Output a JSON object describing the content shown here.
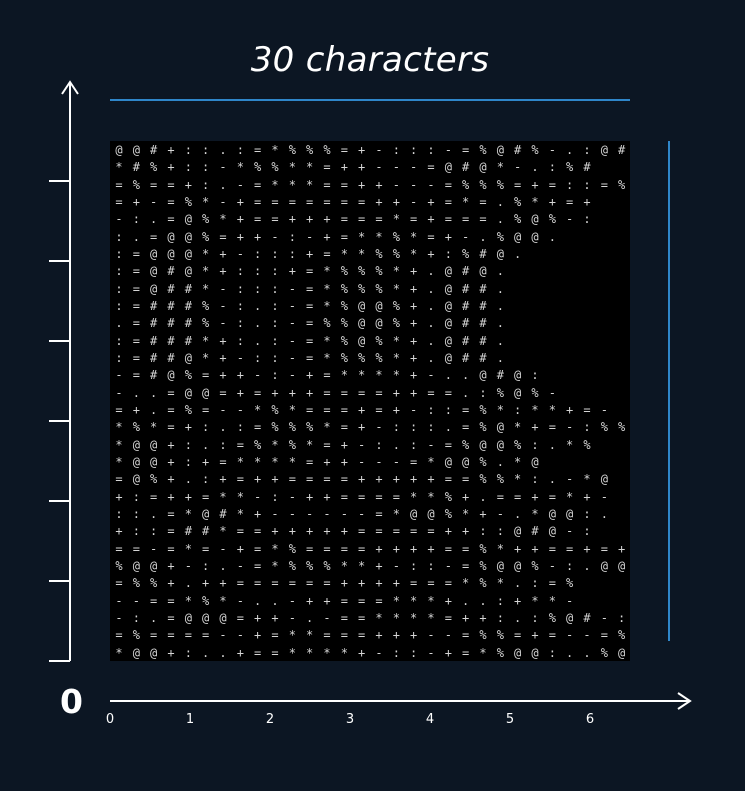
{
  "title": "30 characters",
  "zero_label": "0",
  "x_tick_labels": [
    "0",
    "1",
    "2",
    "3",
    "4",
    "5",
    "6"
  ],
  "colors": {
    "background": "#0c1623",
    "accent_bar": "#2f86c9",
    "axis": "#ffffff",
    "panel": "#000000",
    "glyph": "#d6d6d6"
  },
  "ascii_art": [
    "@ @ # + : : . : = * % % % = + - : : : - = % @ # % - . : @ #",
    "* # % + : : - * % % * * = + + - - - = @ # @ * - . : % #",
    "= % = = + : . - = * * * = = + + - - - = % % % = + = : : = %",
    "= + - = % * - + = = = = = = = + + - + = * = . % * + = +",
    "- : . = @ % * + = = + + + = = = * = + = = = . % @ % - :",
    ": . = @ @ % = + + - : - + = * * % * = + - . % @ @ .",
    ": = @ @ @ * + - : : : + = * * % % * + : % # @ .",
    ": = @ # @ * + : : : + = * % % % * + . @ # @ .",
    ": = @ # # * - : : : - = * % % % * + . @ # # .",
    ": = # # # % - : . : - = * % @ @ % + . @ # # .",
    ". = # # # % - : . : - = % % @ @ % + . @ # # .",
    ": = # # # * + : . : - = * % @ % * + . @ # # .",
    ": = # # @ * + - : : - = * % % % * + . @ # # .",
    "- = # @ % = + + - : - + = * * * * + - . . @ # @ :",
    "- . . = @ @ = + = + + + = = = = + + = = . : % @ % -",
    "= + . = % = - - * % * = = = + = + - : : = % * : * * + = -",
    "* % * = + : . : = % % % * = + - : : : . = % @ * + = - : % %",
    "* @ @ + : . : = % * % * = + - : . : - = % @ @ % : . * %",
    "* @ @ + : + = * * * * = + + - - - = * @ @ % . * @",
    "= @ % + . : + = + + = = = = + + + + + = = % % * : . - * @",
    "+ : = + + = * * - : - + + = = = = * * % + . = = + = * + -",
    ": : . = * @ # * + - - - - - - = * @ @ % * + - . * @ @ : .",
    "+ : : = # # * = = + + + + + = = = = = + + : : @ # @ - :",
    "= = - = * = - + = * % = = = = + + + + = = % * + + = = + = +",
    "% @ @ + - : . - = * % % % * * + - : : - = % @ @ % - : . @ @",
    "= % % + . + + = = = = = = + + + + = = = * % * . : = %",
    "- - = = * % * - . . - + + = = = * * * + . . : + * * -",
    "- : . = @ @ @ = + + - . - = = * * * * = + + : . : % @ # - :",
    "= % = = = = - - + = * * = = = + + + - - = % % = + = - - = %",
    "* @ @ + : . . + = = * * * * + - : : - + = * % @ @ : . . % @"
  ]
}
